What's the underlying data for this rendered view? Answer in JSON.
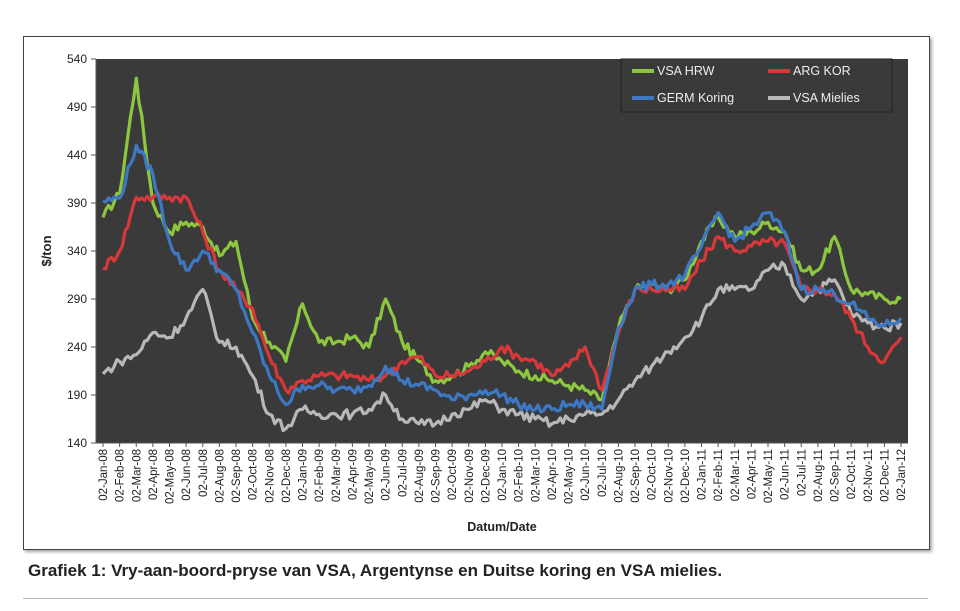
{
  "caption": "Grafiek 1: Vry-aan-boord-pryse van VSA, Argentynse en Duitse koring en VSA mielies.",
  "chart_data": {
    "type": "line",
    "title": "",
    "xlabel": "Datum/Date",
    "ylabel": "$/ton",
    "ylim": [
      140,
      540
    ],
    "yticks": [
      140,
      190,
      240,
      290,
      340,
      390,
      440,
      490,
      540
    ],
    "grid": false,
    "legend": "top-right",
    "background": "#3a3a3a",
    "x": [
      "02-Jan-08",
      "02-Feb-08",
      "02-Mar-08",
      "02-Apr-08",
      "02-May-08",
      "02-Jun-08",
      "02-Jul-08",
      "02-Aug-08",
      "02-Sep-08",
      "02-Oct-08",
      "02-Nov-08",
      "02-Dec-08",
      "02-Jan-09",
      "02-Feb-09",
      "02-Mar-09",
      "02-Apr-09",
      "02-May-09",
      "02-Jun-09",
      "02-Jul-09",
      "02-Aug-09",
      "02-Sep-09",
      "02-Oct-09",
      "02-Nov-09",
      "02-Dec-09",
      "02-Jan-10",
      "02-Feb-10",
      "02-Mar-10",
      "02-Apr-10",
      "02-May-10",
      "02-Jun-10",
      "02-Jul-10",
      "02-Aug-10",
      "02-Sep-10",
      "02-Oct-10",
      "02-Nov-10",
      "02-Dec-10",
      "02-Jan-11",
      "02-Feb-11",
      "02-Mar-11",
      "02-Apr-11",
      "02-May-11",
      "02-Jun-11",
      "02-Jul-11",
      "02-Aug-11",
      "02-Sep-11",
      "02-Oct-11",
      "02-Nov-11",
      "02-Dec-11",
      "02-Jan-12"
    ],
    "series": [
      {
        "name": "VSA HRW",
        "color": "#8dc63f",
        "values": [
          375,
          400,
          520,
          390,
          360,
          370,
          365,
          335,
          350,
          270,
          245,
          225,
          285,
          245,
          245,
          250,
          240,
          290,
          245,
          225,
          205,
          210,
          220,
          235,
          225,
          215,
          210,
          205,
          200,
          195,
          185,
          260,
          300,
          305,
          300,
          310,
          350,
          375,
          355,
          360,
          370,
          360,
          320,
          320,
          355,
          300,
          295,
          290,
          290
        ]
      },
      {
        "name": "ARG KOR",
        "color": "#d9383a",
        "values": [
          322,
          340,
          396,
          396,
          396,
          396,
          360,
          320,
          300,
          280,
          230,
          195,
          205,
          210,
          210,
          210,
          205,
          210,
          225,
          230,
          210,
          210,
          215,
          225,
          240,
          230,
          225,
          210,
          220,
          240,
          195,
          255,
          300,
          300,
          300,
          300,
          330,
          355,
          340,
          345,
          350,
          348,
          300,
          300,
          295,
          270,
          240,
          225,
          250
        ]
      },
      {
        "name": "GERM Koring",
        "color": "#3c78c3",
        "values": [
          392,
          395,
          450,
          420,
          350,
          320,
          340,
          320,
          300,
          255,
          210,
          180,
          200,
          200,
          195,
          195,
          200,
          220,
          205,
          200,
          195,
          185,
          190,
          195,
          190,
          180,
          175,
          175,
          180,
          180,
          175,
          260,
          300,
          305,
          305,
          315,
          345,
          380,
          350,
          365,
          380,
          360,
          300,
          300,
          295,
          285,
          270,
          262,
          270
        ]
      },
      {
        "name": "VSA Mielies",
        "color": "#b8b8b8",
        "values": [
          212,
          225,
          232,
          255,
          250,
          270,
          300,
          245,
          240,
          210,
          170,
          155,
          175,
          170,
          170,
          170,
          175,
          190,
          165,
          160,
          160,
          170,
          175,
          185,
          175,
          170,
          165,
          160,
          165,
          170,
          170,
          185,
          205,
          220,
          235,
          250,
          270,
          300,
          300,
          300,
          320,
          325,
          290,
          300,
          310,
          275,
          265,
          260,
          265
        ]
      }
    ]
  }
}
